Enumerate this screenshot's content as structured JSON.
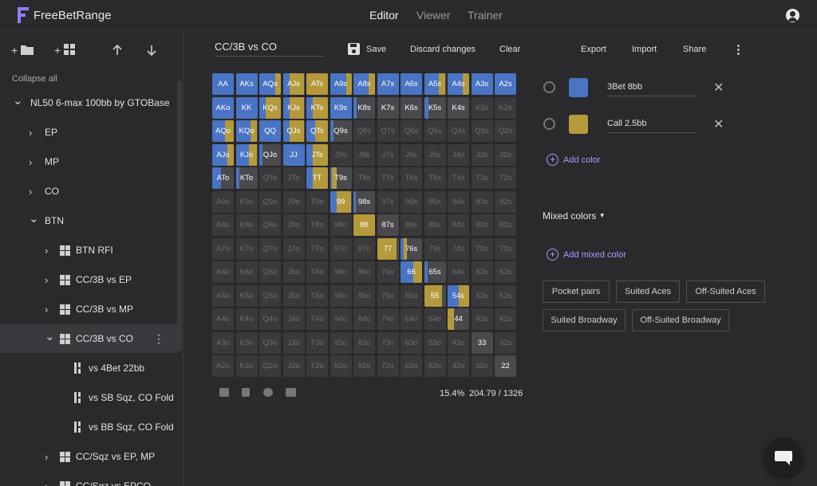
{
  "header": {
    "app_name": "FreeBetRange",
    "nav": [
      "Editor",
      "Viewer",
      "Trainer"
    ],
    "active_nav": "Editor",
    "icons": {
      "logo": "freebetrange-logo-icon",
      "account": "account-circle-icon"
    }
  },
  "sidebar": {
    "tools": {
      "new_folder": "+",
      "new_range": "+"
    },
    "collapse_label": "Collapse all",
    "tree": [
      {
        "label": "NL50 6-max 100bb by GTOBase",
        "level": 0,
        "type": "folder",
        "open": true
      },
      {
        "label": "EP",
        "level": 1,
        "type": "folder",
        "open": false
      },
      {
        "label": "MP",
        "level": 1,
        "type": "folder",
        "open": false
      },
      {
        "label": "CO",
        "level": 1,
        "type": "folder",
        "open": false
      },
      {
        "label": "BTN",
        "level": 1,
        "type": "folder",
        "open": true
      },
      {
        "label": "BTN RFI",
        "level": 2,
        "type": "range",
        "open": false
      },
      {
        "label": "CC/3B vs EP",
        "level": 2,
        "type": "range",
        "open": false
      },
      {
        "label": "CC/3B vs MP",
        "level": 2,
        "type": "range",
        "open": false
      },
      {
        "label": "CC/3B vs CO",
        "level": 2,
        "type": "range",
        "open": true,
        "selected": true
      },
      {
        "label": "vs 4Bet 22bb",
        "level": 3,
        "type": "leaf"
      },
      {
        "label": "vs SB Sqz, CO Fold",
        "level": 3,
        "type": "leaf"
      },
      {
        "label": "vs BB Sqz, CO Fold",
        "level": 3,
        "type": "leaf"
      },
      {
        "label": "CC/Sqz vs EP, MP",
        "level": 2,
        "type": "range",
        "open": false
      },
      {
        "label": "CC/Sqz vs EPCO",
        "level": 2,
        "type": "range",
        "open": false
      }
    ]
  },
  "editor": {
    "range_name": "CC/3B vs CO",
    "toolbar": {
      "save": "Save",
      "discard": "Discard changes",
      "clear": "Clear"
    },
    "ranks": [
      "A",
      "K",
      "Q",
      "J",
      "T",
      "9",
      "8",
      "7",
      "6",
      "5",
      "4",
      "3",
      "2"
    ],
    "active_cells": [
      {
        "h": "AA",
        "b": 1.0,
        "c": 0.0
      },
      {
        "h": "AKs",
        "b": 1.0,
        "c": 0.0
      },
      {
        "h": "AQs",
        "b": 0.75,
        "c": 0.25
      },
      {
        "h": "AJs",
        "b": 0.3,
        "c": 0.7
      },
      {
        "h": "ATs",
        "b": 0.0,
        "c": 1.0
      },
      {
        "h": "A9s",
        "b": 0.75,
        "c": 0.25
      },
      {
        "h": "A8s",
        "b": 0.7,
        "c": 0.3
      },
      {
        "h": "A7s",
        "b": 1.0,
        "c": 0.0
      },
      {
        "h": "A6s",
        "b": 1.0,
        "c": 0.0
      },
      {
        "h": "A5s",
        "b": 0.7,
        "c": 0.3
      },
      {
        "h": "A4s",
        "b": 0.7,
        "c": 0.3
      },
      {
        "h": "A3s",
        "b": 1.0,
        "c": 0.0
      },
      {
        "h": "A2s",
        "b": 1.0,
        "c": 0.0
      },
      {
        "h": "AKo",
        "b": 1.0,
        "c": 0.0
      },
      {
        "h": "KK",
        "b": 1.0,
        "c": 0.0
      },
      {
        "h": "KQs",
        "b": 0.3,
        "c": 0.7
      },
      {
        "h": "KJs",
        "b": 0.3,
        "c": 0.7
      },
      {
        "h": "KTs",
        "b": 0.3,
        "c": 0.7
      },
      {
        "h": "K9s",
        "b": 1.0,
        "c": 0.0
      },
      {
        "h": "K8s",
        "b": 0.15,
        "c": 0.0
      },
      {
        "h": "K7s",
        "b": 0.0,
        "c": 0.0
      },
      {
        "h": "K6s",
        "b": 0.0,
        "c": 0.0
      },
      {
        "h": "K5s",
        "b": 0.2,
        "c": 0.0
      },
      {
        "h": "K4s",
        "b": 0.0,
        "c": 0.0
      },
      {
        "h": "AQo",
        "b": 0.6,
        "c": 0.4
      },
      {
        "h": "KQo",
        "b": 0.7,
        "c": 0.3
      },
      {
        "h": "QQ",
        "b": 1.0,
        "c": 0.0
      },
      {
        "h": "QJs",
        "b": 0.3,
        "c": 0.7
      },
      {
        "h": "QTs",
        "b": 0.4,
        "c": 0.6
      },
      {
        "h": "Q9s",
        "b": 0.15,
        "c": 0.0
      },
      {
        "h": "AJo",
        "b": 0.7,
        "c": 0.3
      },
      {
        "h": "KJo",
        "b": 0.6,
        "c": 0.4
      },
      {
        "h": "QJo",
        "b": 0.15,
        "c": 0.0
      },
      {
        "h": "JJ",
        "b": 1.0,
        "c": 0.0
      },
      {
        "h": "JTs",
        "b": 0.3,
        "c": 0.7
      },
      {
        "h": "ATo",
        "b": 0.4,
        "c": 0.0
      },
      {
        "h": "KTo",
        "b": 0.15,
        "c": 0.0
      },
      {
        "h": "TT",
        "b": 0.3,
        "c": 0.7
      },
      {
        "h": "T9s",
        "b": 0.1,
        "c": 0.2
      },
      {
        "h": "99",
        "b": 0.3,
        "c": 0.7
      },
      {
        "h": "98s",
        "b": 0.1,
        "c": 0.0
      },
      {
        "h": "88",
        "b": 0.0,
        "c": 1.0
      },
      {
        "h": "87s",
        "b": 0.0,
        "c": 0.0
      },
      {
        "h": "77",
        "b": 0.0,
        "c": 0.9
      },
      {
        "h": "76s",
        "b": 0.15,
        "c": 0.15
      },
      {
        "h": "66",
        "b": 0.6,
        "c": 0.4
      },
      {
        "h": "65s",
        "b": 0.15,
        "c": 0.0
      },
      {
        "h": "55",
        "b": 0.0,
        "c": 0.85
      },
      {
        "h": "54s",
        "b": 0.5,
        "c": 0.5
      },
      {
        "h": "44",
        "b": 0.0,
        "c": 0.3
      },
      {
        "h": "33",
        "b": 0.0,
        "c": 0.0
      },
      {
        "h": "22",
        "b": 0.0,
        "c": 0.0
      }
    ],
    "footer": {
      "percent": "15.4%",
      "combos": "204.79 / 1326"
    }
  },
  "right_panel": {
    "header_actions": [
      "Export",
      "Import",
      "Share"
    ],
    "colors": [
      {
        "name": "3Bet 8bb",
        "hex": "#4a74c4"
      },
      {
        "name": "Call 2.5bb",
        "hex": "#b59a3c"
      }
    ],
    "add_color": "Add color",
    "mixed_title": "Mixed colors",
    "add_mixed": "Add mixed color",
    "presets": [
      "Pocket pairs",
      "Suited Aces",
      "Off-Suited Aces",
      "Suited Broadway",
      "Off-Suited Broadway"
    ]
  }
}
